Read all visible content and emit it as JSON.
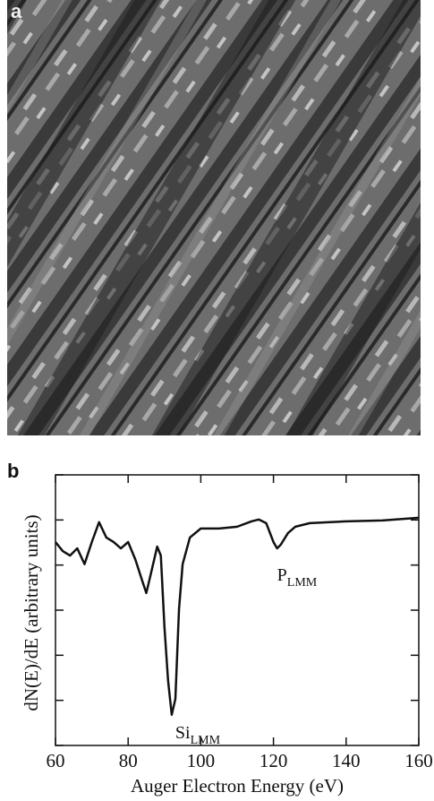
{
  "panels": {
    "a": "a",
    "b": "b"
  },
  "chart_data": {
    "type": "line",
    "x_label": "Auger Electron Energy (eV)",
    "y_label": "dN(E)/dE (arbitrary units)",
    "x": [
      60,
      62,
      64,
      66,
      68,
      70,
      72,
      74,
      76,
      78,
      80,
      82,
      84,
      85,
      86,
      88,
      89,
      90,
      91,
      92,
      93,
      94,
      95,
      97,
      100,
      105,
      110,
      114,
      116,
      118,
      120,
      121,
      122,
      124,
      126,
      130,
      140,
      150,
      160
    ],
    "series": [
      {
        "color": "#111111",
        "values": [
          4.51,
          4.31,
          4.21,
          4.37,
          4.02,
          4.51,
          4.95,
          4.61,
          4.51,
          4.37,
          4.51,
          4.12,
          3.62,
          3.38,
          3.72,
          4.41,
          4.21,
          2.62,
          1.43,
          0.68,
          1.03,
          3.02,
          4.02,
          4.61,
          4.81,
          4.81,
          4.85,
          4.97,
          5.01,
          4.93,
          4.51,
          4.37,
          4.45,
          4.71,
          4.85,
          4.93,
          4.97,
          4.99,
          5.05
        ]
      }
    ],
    "xlim": [
      60,
      160
    ],
    "xticks": [
      60,
      80,
      100,
      120,
      140,
      160
    ],
    "ylim": [
      0,
      6
    ],
    "yticks": [
      0,
      1,
      2,
      3,
      4,
      5,
      6
    ],
    "annotations": [
      {
        "text": "Si",
        "sub": "LMM",
        "x": 92,
        "y": 0.68
      },
      {
        "text": "P",
        "sub": "LMM",
        "x": 121,
        "y": 4.37
      }
    ]
  }
}
